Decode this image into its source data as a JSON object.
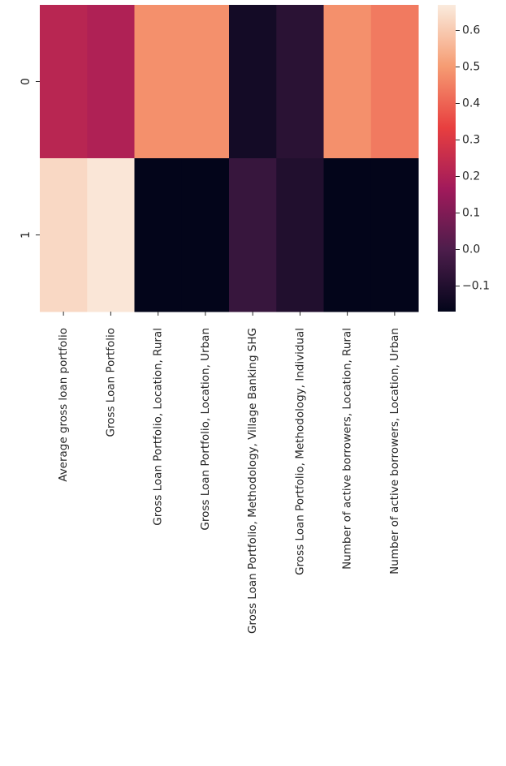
{
  "chart_data": {
    "type": "heatmap",
    "title": "",
    "xlabel": "",
    "ylabel": "",
    "rows": [
      "0",
      "1"
    ],
    "columns": [
      "Average gross loan portfolio",
      "Gross Loan Portfolio",
      "Gross Loan Portfolio, Location, Rural",
      "Gross Loan Portfolio, Location, Urban",
      "Gross Loan Portfolio, Methodology, Village Banking SHG",
      "Gross Loan Portfolio, Methodology, Individual",
      "Number of active borrowers, Location, Rural",
      "Number of active borrowers, Location, Urban"
    ],
    "values": [
      [
        0.22,
        0.2,
        0.48,
        0.48,
        -0.13,
        -0.08,
        0.48,
        0.44
      ],
      [
        0.63,
        0.66,
        -0.17,
        -0.17,
        -0.05,
        -0.1,
        -0.17,
        -0.17
      ]
    ],
    "colorbar": {
      "min": -0.17,
      "max": 0.67,
      "ticks": [
        -0.1,
        0.0,
        0.1,
        0.2,
        0.3,
        0.4,
        0.5,
        0.6
      ],
      "tick_labels": [
        "−0.1",
        "0.0",
        "0.1",
        "0.2",
        "0.3",
        "0.4",
        "0.5",
        "0.6"
      ],
      "colormap": "rocket",
      "colors": [
        "#03051a",
        "#4c1d4b",
        "#a11a5b",
        "#e83f3f",
        "#f69c73",
        "#faebdd"
      ]
    }
  }
}
